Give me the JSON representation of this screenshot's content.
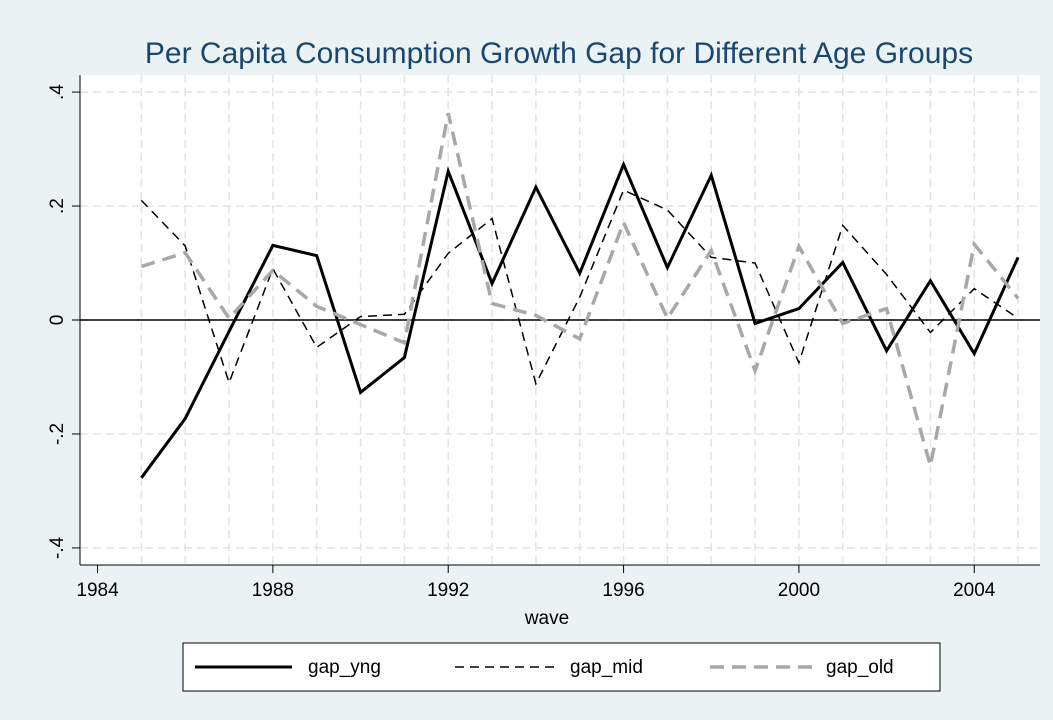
{
  "chart_data": {
    "type": "line",
    "title": "Per Capita Consumption Growth Gap for Different Age Groups",
    "x_label": "wave",
    "x": [
      1985,
      1986,
      1987,
      1988,
      1989,
      1990,
      1991,
      1992,
      1993,
      1994,
      1995,
      1996,
      1997,
      1998,
      1999,
      2000,
      2001,
      2002,
      2003,
      2004,
      2005
    ],
    "series": [
      {
        "name": "gap_yng",
        "color": "#000000",
        "style": "solid",
        "values": [
          -0.277,
          -0.173,
          -0.02,
          0.131,
          0.113,
          -0.127,
          -0.066,
          0.261,
          0.064,
          0.233,
          0.082,
          0.273,
          0.092,
          0.254,
          -0.006,
          0.02,
          0.101,
          -0.054,
          0.069,
          -0.059,
          0.11
        ]
      },
      {
        "name": "gap_mid",
        "color": "#000000",
        "style": "dash",
        "values": [
          0.21,
          0.13,
          -0.11,
          0.09,
          -0.048,
          0.006,
          0.01,
          0.117,
          0.178,
          -0.112,
          0.04,
          0.228,
          0.193,
          0.11,
          0.1,
          -0.075,
          0.166,
          0.08,
          -0.022,
          0.055,
          0.003
        ]
      },
      {
        "name": "gap_old",
        "color": "#a8a8a8",
        "style": "longdash",
        "values": [
          0.094,
          0.118,
          0.003,
          0.087,
          0.024,
          -0.008,
          -0.04,
          0.363,
          0.029,
          0.008,
          -0.033,
          0.171,
          0.003,
          0.122,
          -0.089,
          0.129,
          -0.006,
          0.02,
          -0.256,
          0.133,
          0.038
        ]
      }
    ],
    "xlim": [
      1983.6,
      2005.5
    ],
    "xticks": [
      1984,
      1988,
      1992,
      1996,
      2000,
      2004
    ],
    "ylim": [
      -0.43,
      0.43
    ],
    "yticks": [
      {
        "value": -0.4,
        "label": "-.4"
      },
      {
        "value": -0.2,
        "label": "-.2"
      },
      0,
      {
        "value": 0.2,
        "label": ".2"
      },
      {
        "value": 0.4,
        "label": ".4"
      }
    ],
    "yline": 0,
    "grid": true,
    "legend": "bottom"
  }
}
